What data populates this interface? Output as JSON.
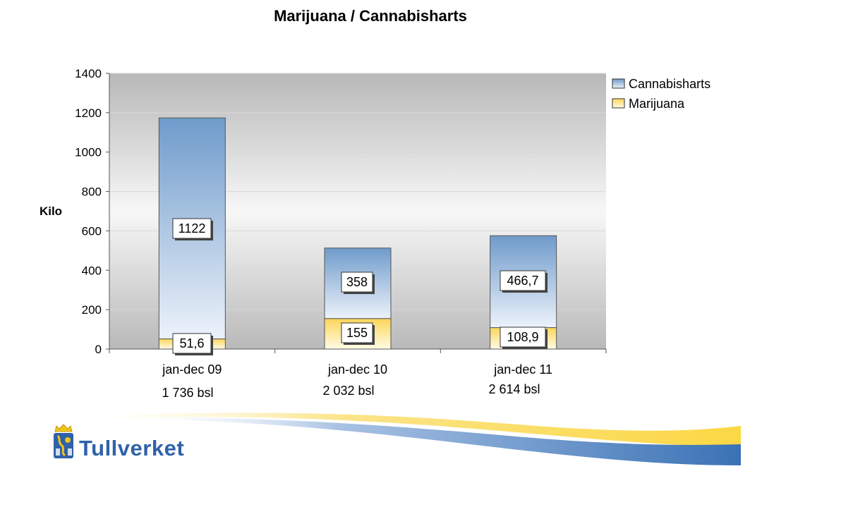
{
  "chart_data": {
    "type": "bar",
    "stacked": true,
    "title": "Marijuana / Cannabisharts",
    "ylabel": "Kilo",
    "xlabel": "",
    "ylim": [
      0,
      1400
    ],
    "yticks": [
      0,
      200,
      400,
      600,
      800,
      1000,
      1200,
      1400
    ],
    "categories": [
      "jan-dec 09",
      "jan-dec 10",
      "jan-dec 11"
    ],
    "category_notes": [
      "1 736 bsl",
      "2 032 bsl",
      "2 614 bsl"
    ],
    "series": [
      {
        "name": "Marijuana",
        "values": [
          51.6,
          155,
          108.9
        ],
        "labels": [
          "51,6",
          "155",
          "108,9"
        ],
        "color": "#fce27a"
      },
      {
        "name": "Cannabisharts",
        "values": [
          1122,
          358,
          466.7
        ],
        "labels": [
          "1122",
          "358",
          "466,7"
        ],
        "color": "#6f9bcb"
      }
    ],
    "legend_order": [
      "Cannabisharts",
      "Marijuana"
    ],
    "legend_position": "right",
    "grid": true
  },
  "branding": {
    "logo_text": "Tullverket",
    "logo_color": "#2f62a8"
  }
}
